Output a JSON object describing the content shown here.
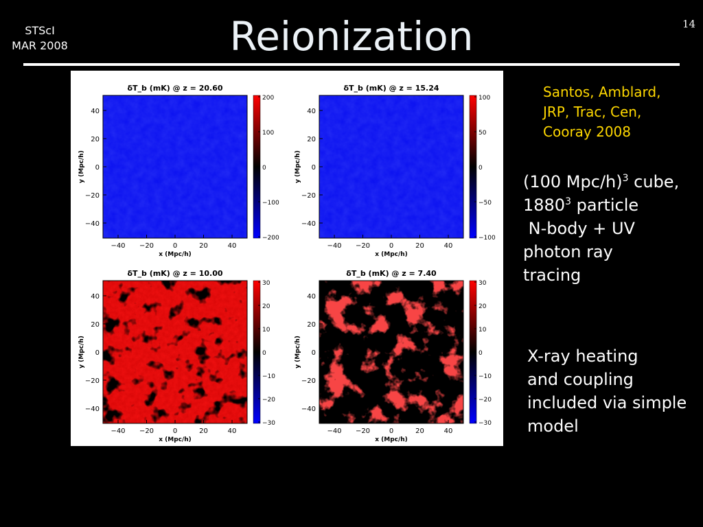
{
  "header": {
    "org": "STScI",
    "date": "MAR 2008",
    "title": "Reionization",
    "page_number": "14"
  },
  "citation": [
    "Santos, Amblard,",
    "JRP, Trac, Cen,",
    "Cooray 2008"
  ],
  "description": {
    "line1_pre": "(100 Mpc/h)",
    "line1_sup": "3",
    "line1_post": " cube,",
    "line2_pre": "1880",
    "line2_sup": "3",
    "line2_post": " particle",
    "line3": " N-body + UV",
    "line4": "photon ray",
    "line5": "tracing"
  },
  "note": [
    "X-ray heating",
    "and coupling",
    "included via simple",
    "model"
  ],
  "colors": {
    "text": "#ffffff",
    "citation": "#ffd800",
    "title": "#ecf2f7",
    "map_blue": "#0a10f0",
    "map_red": "#f01010",
    "map_black": "#000000"
  },
  "chart_data": [
    {
      "type": "heatmap",
      "title": "δT_b (mK) @ z = 20.60",
      "xlabel": "x (Mpc/h)",
      "ylabel": "y (Mpc/h)",
      "xticks": [
        "-40",
        "-20",
        "0",
        "20",
        "40"
      ],
      "yticks": [
        "40",
        "20",
        "0",
        "-20",
        "-40"
      ],
      "colorbar_ticks": [
        "200",
        "100",
        "0",
        "-100",
        "-200"
      ],
      "field": "uniform_blue"
    },
    {
      "type": "heatmap",
      "title": "δT_b (mK) @ z = 15.24",
      "xlabel": "x (Mpc/h)",
      "ylabel": "y (Mpc/h)",
      "xticks": [
        "-40",
        "-20",
        "0",
        "20",
        "40"
      ],
      "yticks": [
        "40",
        "20",
        "0",
        "-20",
        "-40"
      ],
      "colorbar_ticks": [
        "100",
        "50",
        "0",
        "-50",
        "-100"
      ],
      "field": "uniform_blue"
    },
    {
      "type": "heatmap",
      "title": "δT_b (mK) @ z = 10.00",
      "xlabel": "x (Mpc/h)",
      "ylabel": "y (Mpc/h)",
      "xticks": [
        "-40",
        "-20",
        "0",
        "20",
        "40"
      ],
      "yticks": [
        "40",
        "20",
        "0",
        "-20",
        "-40"
      ],
      "colorbar_ticks": [
        "30",
        "20",
        "10",
        "0",
        "-10",
        "-20",
        "-30"
      ],
      "field": "red_with_holes"
    },
    {
      "type": "heatmap",
      "title": "δT_b (mK) @ z = 7.40",
      "xlabel": "x (Mpc/h)",
      "ylabel": "y (Mpc/h)",
      "xticks": [
        "-40",
        "-20",
        "0",
        "20",
        "40"
      ],
      "yticks": [
        "40",
        "20",
        "0",
        "-20",
        "-40"
      ],
      "colorbar_ticks": [
        "30",
        "20",
        "10",
        "0",
        "-10",
        "-20",
        "-30"
      ],
      "field": "black_with_red_filaments"
    }
  ]
}
